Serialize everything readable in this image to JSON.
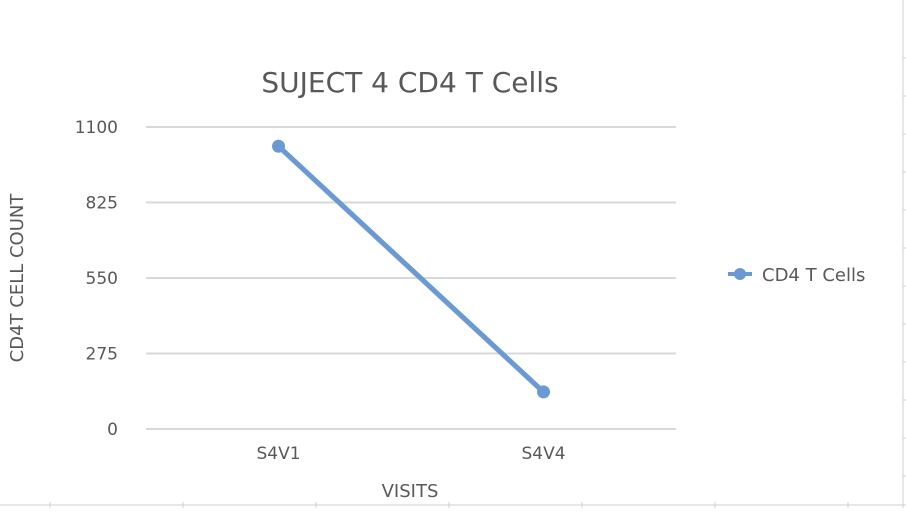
{
  "chart_data": {
    "type": "line",
    "title": "SUJECT 4 CD4 T Cells",
    "xlabel": "VISITS",
    "ylabel": "CD4T CELL COUNT",
    "categories": [
      "S4V1",
      "S4V4"
    ],
    "series": [
      {
        "name": "CD4 T Cells",
        "values": [
          1030,
          135
        ],
        "color": "#6A9AD4"
      }
    ],
    "ylim": [
      0,
      1100
    ],
    "yticks": [
      "0",
      "275",
      "550",
      "825",
      "1100"
    ],
    "grid": true,
    "legend": "right",
    "colors": {
      "gridline": "#d9d9d9",
      "axis_text": "#595959",
      "title_text": "#595959",
      "sheet_lines": "#d0d0d0"
    }
  }
}
